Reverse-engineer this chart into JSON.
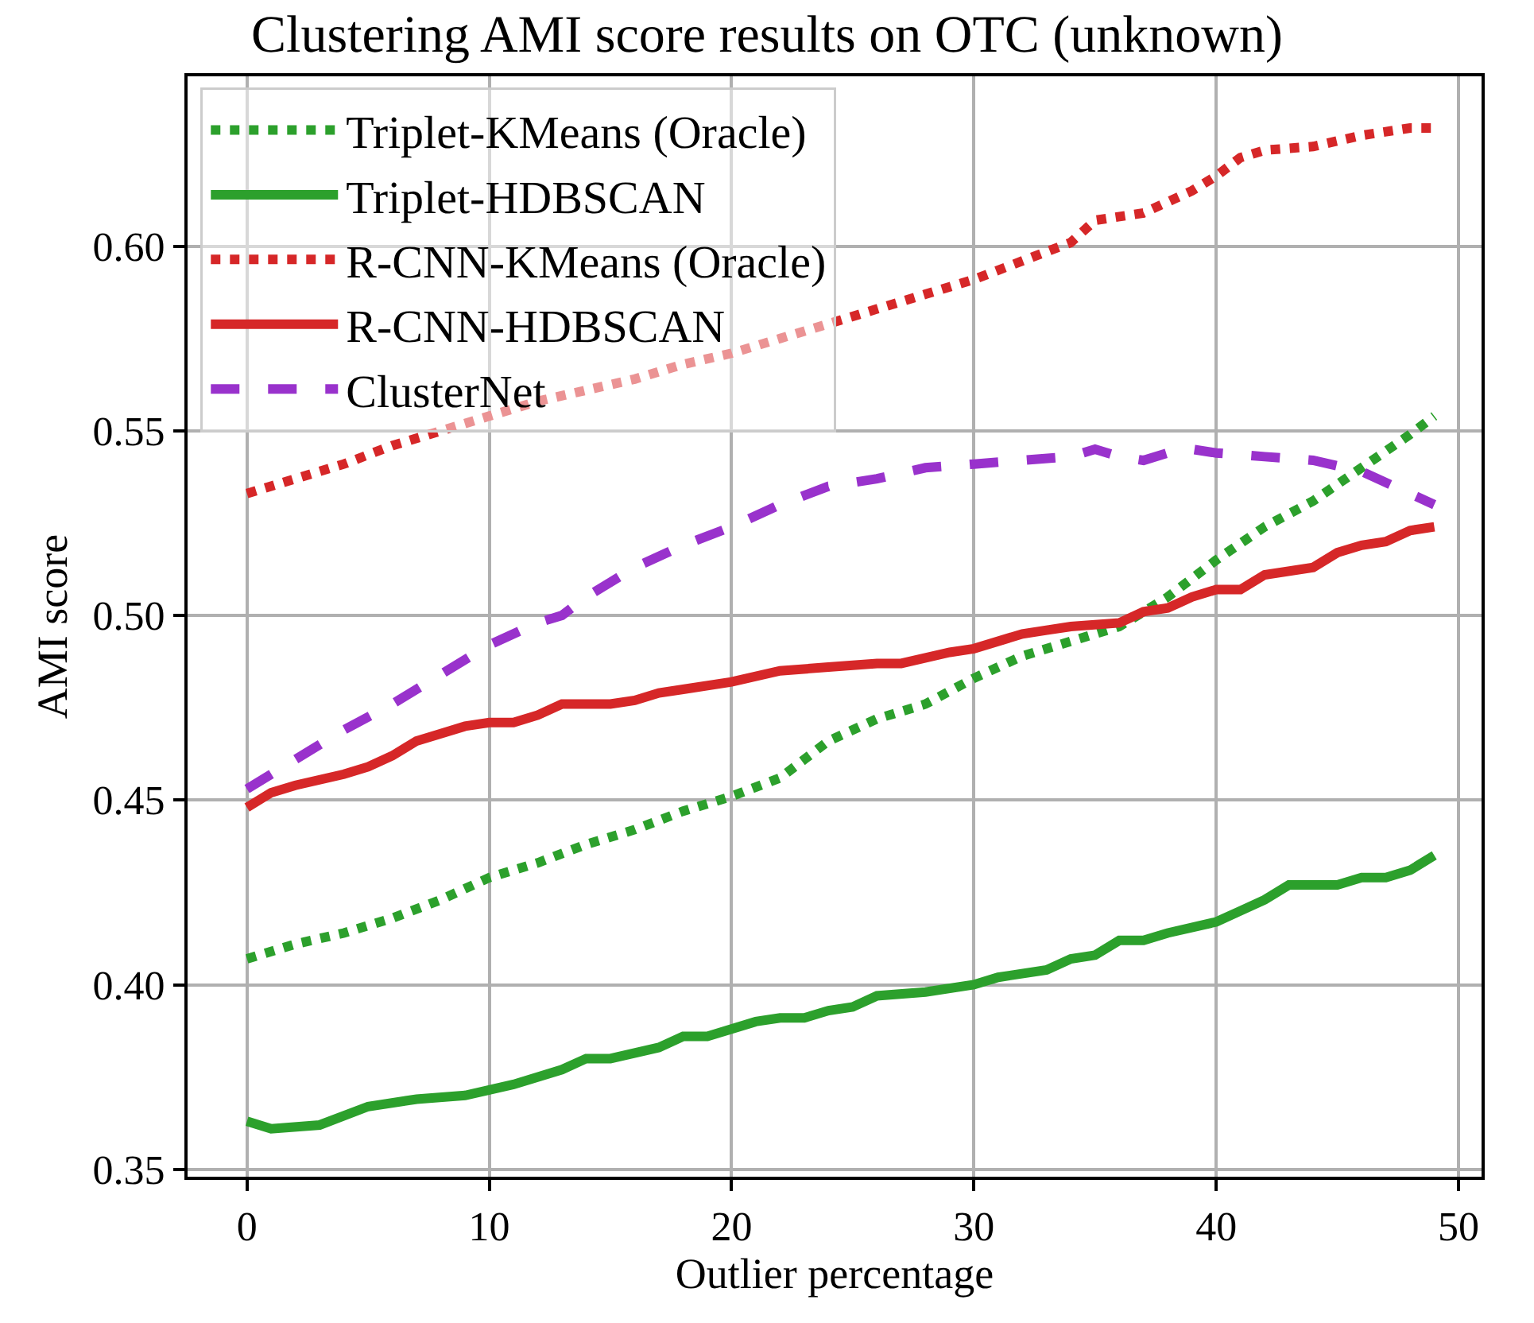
{
  "chart_data": {
    "type": "line",
    "title": "Clustering AMI score results on OTC (unknown)",
    "xlabel": "Outlier percentage",
    "ylabel": "AMI score",
    "xlim": [
      -2.45,
      50.95
    ],
    "xticks": [
      0,
      10,
      20,
      30,
      40,
      50
    ],
    "ylim": [
      0.348,
      0.646
    ],
    "yticks": [
      0.35,
      {
        "value": 0.4,
        "label": "0.40"
      },
      0.45,
      {
        "value": 0.5,
        "label": "0.50"
      },
      0.55,
      {
        "value": 0.6,
        "label": "0.60"
      }
    ],
    "grid": true,
    "legend": "top left",
    "marker": "none",
    "series": [
      {
        "name": "Triplet-KMeans (Oracle)",
        "color": "#2ca02c",
        "line_style": "dotted",
        "x": [
          0,
          2,
          4,
          6,
          8,
          10,
          12,
          14,
          16,
          18,
          20,
          22,
          24,
          26,
          28,
          30,
          32,
          34,
          36,
          38,
          40,
          42,
          44,
          46,
          48,
          49
        ],
        "values": [
          0.407,
          0.411,
          0.414,
          0.418,
          0.423,
          0.429,
          0.433,
          0.438,
          0.442,
          0.447,
          0.451,
          0.456,
          0.466,
          0.472,
          0.476,
          0.483,
          0.489,
          0.493,
          0.497,
          0.505,
          0.515,
          0.524,
          0.531,
          0.54,
          0.549,
          0.554
        ]
      },
      {
        "name": "Triplet-HDBSCAN",
        "color": "#2ca02c",
        "line_style": "solid",
        "x": [
          0,
          1,
          3,
          5,
          7,
          9,
          11,
          13,
          14,
          15,
          17,
          18,
          19,
          21,
          22,
          23,
          24,
          25,
          26,
          28,
          30,
          31,
          33,
          34,
          35,
          36,
          37,
          38,
          40,
          41,
          42,
          43,
          45,
          46,
          47,
          48,
          49
        ],
        "values": [
          0.363,
          0.361,
          0.362,
          0.367,
          0.369,
          0.37,
          0.373,
          0.377,
          0.38,
          0.38,
          0.383,
          0.386,
          0.386,
          0.39,
          0.391,
          0.391,
          0.393,
          0.394,
          0.397,
          0.398,
          0.4,
          0.402,
          0.404,
          0.407,
          0.408,
          0.412,
          0.412,
          0.414,
          0.417,
          0.42,
          0.423,
          0.427,
          0.427,
          0.429,
          0.429,
          0.431,
          0.435
        ]
      },
      {
        "name": "R-CNN-KMeans (Oracle)",
        "color": "#d62728",
        "line_style": "dotted",
        "x": [
          0,
          2,
          4,
          6,
          8,
          10,
          12,
          14,
          16,
          18,
          20,
          22,
          24,
          26,
          28,
          30,
          32,
          34,
          35,
          37,
          39,
          40,
          41,
          42,
          44,
          46,
          48,
          49
        ],
        "values": [
          0.533,
          0.537,
          0.541,
          0.546,
          0.55,
          0.554,
          0.558,
          0.561,
          0.564,
          0.568,
          0.571,
          0.575,
          0.579,
          0.583,
          0.587,
          0.591,
          0.596,
          0.601,
          0.607,
          0.609,
          0.615,
          0.619,
          0.624,
          0.626,
          0.627,
          0.63,
          0.632,
          0.632
        ]
      },
      {
        "name": "R-CNN-HDBSCAN",
        "color": "#d62728",
        "line_style": "solid",
        "x": [
          0,
          1,
          2,
          4,
          5,
          6,
          7,
          8,
          9,
          10,
          11,
          12,
          13,
          15,
          16,
          17,
          18,
          20,
          22,
          24,
          26,
          27,
          29,
          30,
          32,
          33,
          34,
          36,
          37,
          38,
          39,
          40,
          41,
          42,
          44,
          45,
          46,
          47,
          48,
          49
        ],
        "values": [
          0.448,
          0.452,
          0.454,
          0.457,
          0.459,
          0.462,
          0.466,
          0.468,
          0.47,
          0.471,
          0.471,
          0.473,
          0.476,
          0.476,
          0.477,
          0.479,
          0.48,
          0.482,
          0.485,
          0.486,
          0.487,
          0.487,
          0.49,
          0.491,
          0.495,
          0.496,
          0.497,
          0.498,
          0.501,
          0.502,
          0.505,
          0.507,
          0.507,
          0.511,
          0.513,
          0.517,
          0.519,
          0.52,
          0.523,
          0.524
        ]
      },
      {
        "name": "ClusterNet",
        "color": "#9932cc",
        "line_style": "dashed",
        "x": [
          0,
          2,
          4,
          6,
          8,
          10,
          12,
          13,
          14,
          16,
          18,
          20,
          22,
          24,
          26,
          28,
          30,
          32,
          34,
          35,
          36,
          37,
          38,
          39,
          40,
          42,
          44,
          46,
          48,
          49
        ],
        "values": [
          0.453,
          0.461,
          0.469,
          0.476,
          0.484,
          0.492,
          0.498,
          0.5,
          0.505,
          0.513,
          0.519,
          0.524,
          0.53,
          0.535,
          0.537,
          0.54,
          0.541,
          0.542,
          0.543,
          0.545,
          0.543,
          0.542,
          0.544,
          0.545,
          0.544,
          0.543,
          0.542,
          0.539,
          0.533,
          0.53
        ]
      }
    ]
  }
}
